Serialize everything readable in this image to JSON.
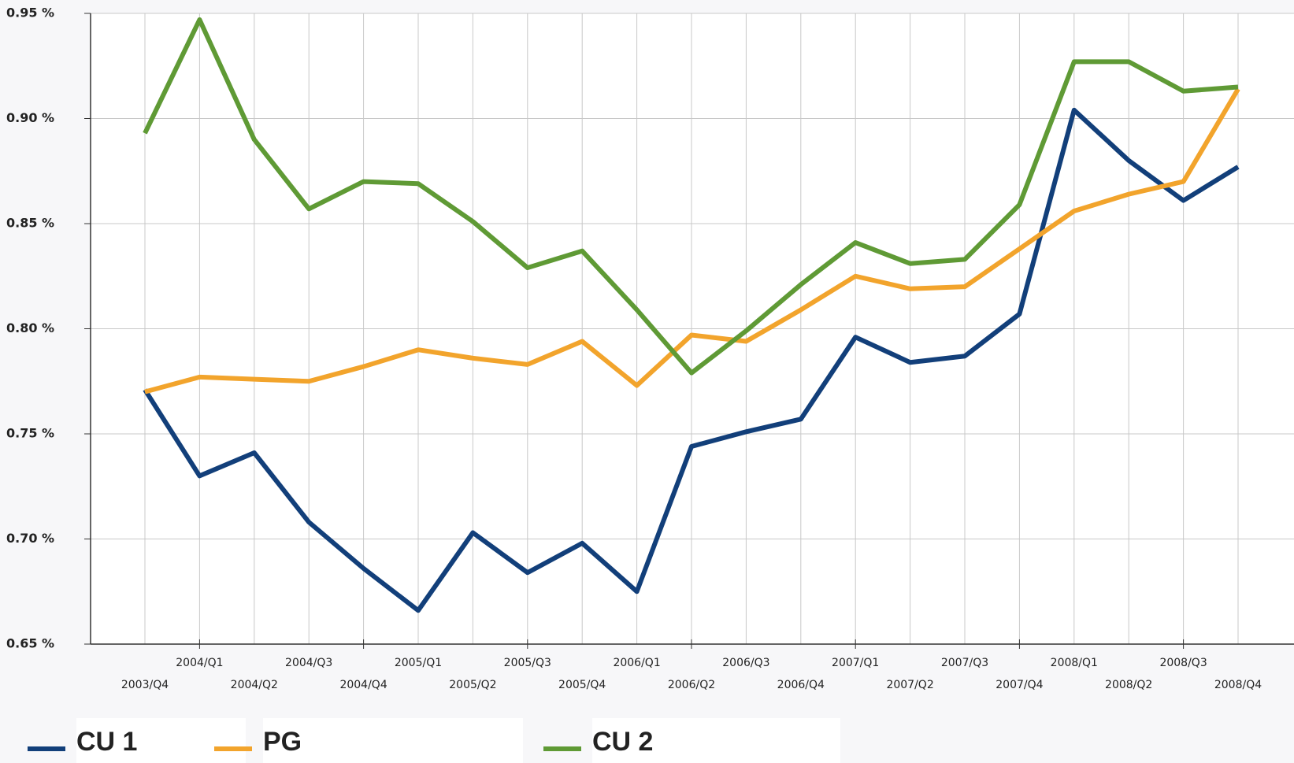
{
  "chart_data": {
    "type": "line",
    "categories": [
      "2003/Q4",
      "2004/Q1",
      "2004/Q2",
      "2004/Q3",
      "2004/Q4",
      "2005/Q1",
      "2005/Q2",
      "2005/Q3",
      "2005/Q4",
      "2006/Q1",
      "2006/Q2",
      "2006/Q3",
      "2006/Q4",
      "2007/Q1",
      "2007/Q2",
      "2007/Q3",
      "2007/Q4",
      "2008/Q1",
      "2008/Q2",
      "2008/Q3",
      "2008/Q4"
    ],
    "series": [
      {
        "name": "CU 1",
        "color": "#123f7a",
        "values": [
          0.771,
          0.73,
          0.741,
          0.708,
          0.686,
          0.666,
          0.703,
          0.684,
          0.698,
          0.675,
          0.744,
          0.751,
          0.757,
          0.796,
          0.784,
          0.787,
          0.807,
          0.904,
          0.88,
          0.861,
          0.877
        ]
      },
      {
        "name": "PG",
        "color": "#f2a42c",
        "values": [
          0.77,
          0.777,
          0.776,
          0.775,
          0.782,
          0.79,
          0.786,
          0.783,
          0.794,
          0.773,
          0.797,
          0.794,
          0.809,
          0.825,
          0.819,
          0.82,
          0.838,
          0.856,
          0.864,
          0.87,
          0.914
        ]
      },
      {
        "name": "CU 2",
        "color": "#5f9a35",
        "values": [
          0.893,
          0.947,
          0.89,
          0.857,
          0.87,
          0.869,
          0.851,
          0.829,
          0.837,
          0.809,
          0.779,
          0.799,
          0.821,
          0.841,
          0.831,
          0.833,
          0.859,
          0.927,
          0.927,
          0.913,
          0.915
        ]
      }
    ],
    "ylim": [
      0.65,
      0.95
    ],
    "yticks": [
      {
        "value": 0.65,
        "label": "0.65 %"
      },
      {
        "value": 0.7,
        "label": "0.70 %"
      },
      {
        "value": 0.75,
        "label": "0.75 %"
      },
      {
        "value": 0.8,
        "label": "0.80 %"
      },
      {
        "value": 0.85,
        "label": "0.85 %"
      },
      {
        "value": 0.9,
        "label": "0.90 %"
      },
      {
        "value": 0.95,
        "label": "0.95 %"
      }
    ],
    "grid": true,
    "legend": "bottom"
  }
}
